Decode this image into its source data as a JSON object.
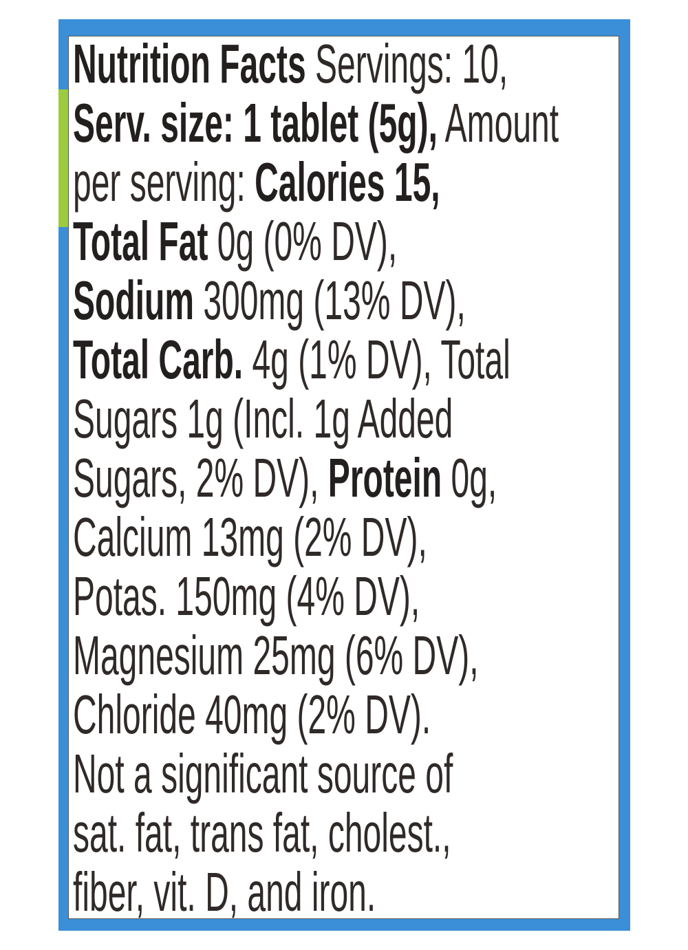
{
  "label": {
    "lines": [
      [
        {
          "text": "Nutrition Facts",
          "bold": true
        },
        {
          "text": " Servings: 10,",
          "bold": false
        }
      ],
      [
        {
          "text": "Serv. size: 1 tablet (5g),",
          "bold": true
        },
        {
          "text": " Amount",
          "bold": false
        }
      ],
      [
        {
          "text": "per serving: ",
          "bold": false
        },
        {
          "text": "Calories 15,",
          "bold": true
        }
      ],
      [
        {
          "text": "Total Fat",
          "bold": true
        },
        {
          "text": " 0g (0% DV),",
          "bold": false
        }
      ],
      [
        {
          "text": "Sodium",
          "bold": true
        },
        {
          "text": " 300mg (13% DV),",
          "bold": false
        }
      ],
      [
        {
          "text": "Total Carb.",
          "bold": true
        },
        {
          "text": " 4g (1% DV), Total",
          "bold": false
        }
      ],
      [
        {
          "text": "Sugars 1g (Incl. 1g Added",
          "bold": false
        }
      ],
      [
        {
          "text": "Sugars, 2% DV), ",
          "bold": false
        },
        {
          "text": "Protein",
          "bold": true
        },
        {
          "text": " 0g,",
          "bold": false
        }
      ],
      [
        {
          "text": "Calcium 13mg (2% DV),",
          "bold": false
        }
      ],
      [
        {
          "text": "Potas. 150mg (4% DV),",
          "bold": false
        }
      ],
      [
        {
          "text": "Magnesium 25mg (6% DV),",
          "bold": false
        }
      ],
      [
        {
          "text": "Chloride 40mg (2% DV).",
          "bold": false
        }
      ],
      [
        {
          "text": "Not a significant source of",
          "bold": false
        }
      ],
      [
        {
          "text": "sat. fat, trans fat, cholest.,",
          "bold": false
        }
      ],
      [
        {
          "text": "fiber, vit. D, and iron.",
          "bold": false
        }
      ]
    ]
  }
}
